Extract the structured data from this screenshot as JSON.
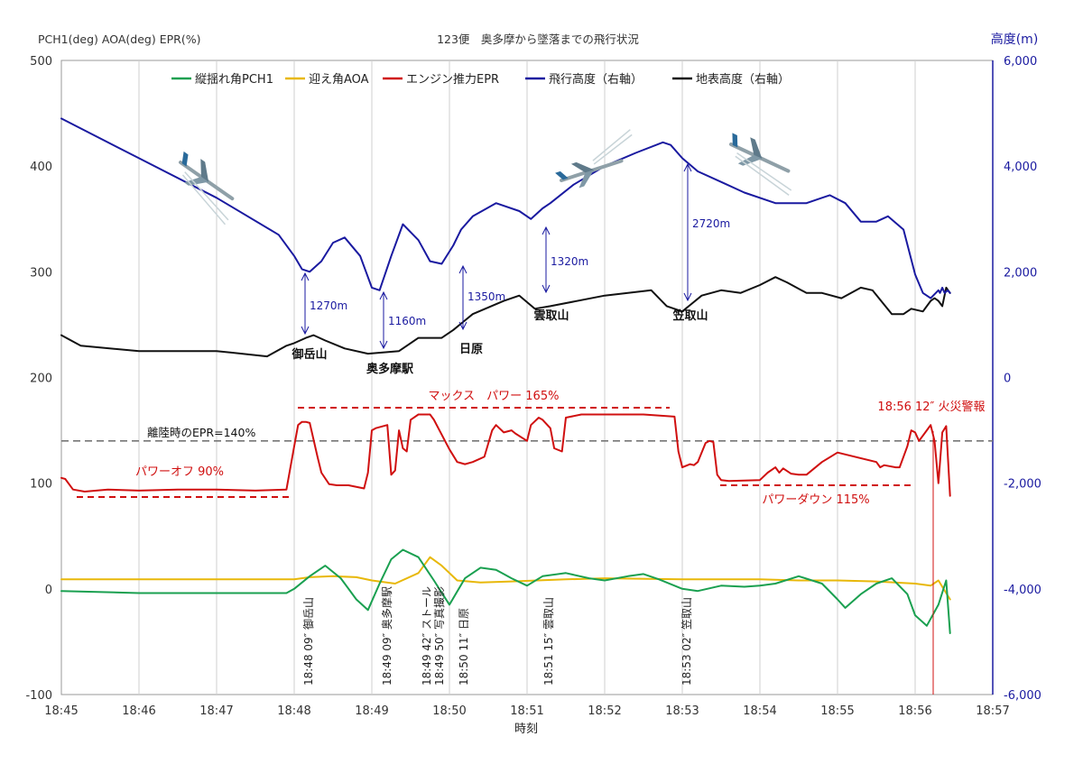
{
  "header": {
    "left_axis_label": "PCH1(deg)  AOA(deg)  EPR(%)",
    "right_axis_label": "高度(m)"
  },
  "chart_data": {
    "type": "line",
    "title": "123便　奥多摩から墜落までの飛行状況",
    "xlabel": "時刻",
    "x_range": [
      "18:45",
      "18:57"
    ],
    "x_ticks": [
      "18:45",
      "18:46",
      "18:47",
      "18:48",
      "18:49",
      "18:50",
      "18:51",
      "18:52",
      "18:53",
      "18:54",
      "18:55",
      "18:56",
      "18:57"
    ],
    "y_left_range": [
      -100,
      500
    ],
    "y_left_ticks": [
      -100,
      0,
      100,
      200,
      300,
      400,
      500
    ],
    "y_right_range": [
      -6000,
      6000
    ],
    "y_right_ticks": [
      "-6,000",
      "-4,000",
      "-2,000",
      "0",
      "2,000",
      "4,000",
      "6,000"
    ],
    "grid": "vertical",
    "legend_position": "top",
    "series": [
      {
        "name": "縦揺れ角PCH1",
        "axis": "left",
        "color": "#1aa050",
        "x": [
          0,
          1,
          2,
          2.5,
          2.9,
          3.0,
          3.2,
          3.4,
          3.6,
          3.8,
          3.95,
          4.1,
          4.25,
          4.4,
          4.6,
          4.8,
          5.0,
          5.2,
          5.4,
          5.6,
          5.8,
          6.0,
          6.2,
          6.5,
          6.8,
          7.0,
          7.3,
          7.5,
          7.7,
          8.0,
          8.2,
          8.5,
          8.8,
          9.0,
          9.2,
          9.5,
          9.8,
          10.0,
          10.1,
          10.3,
          10.5,
          10.7,
          10.9,
          11.0,
          11.15,
          11.3,
          11.4,
          11.45
        ],
        "y": [
          -2,
          -4,
          -4,
          -4,
          -4,
          0,
          12,
          22,
          10,
          -10,
          -20,
          5,
          28,
          37,
          30,
          8,
          -15,
          10,
          20,
          18,
          10,
          3,
          12,
          15,
          10,
          8,
          12,
          14,
          9,
          0,
          -2,
          3,
          2,
          3,
          5,
          12,
          5,
          -10,
          -18,
          -5,
          5,
          10,
          -5,
          -25,
          -35,
          -15,
          8,
          -42
        ]
      },
      {
        "name": "迎え角AOA",
        "axis": "left",
        "color": "#e8b80a",
        "x": [
          0,
          1,
          2,
          3,
          3.2,
          3.5,
          3.8,
          4.0,
          4.3,
          4.6,
          4.75,
          4.9,
          5.1,
          5.4,
          5.8,
          6.5,
          7,
          8,
          9,
          9.5,
          10,
          10.5,
          11,
          11.2,
          11.3,
          11.45
        ],
        "y": [
          9,
          9,
          9,
          9,
          11,
          12,
          11,
          8,
          5,
          15,
          30,
          22,
          8,
          6,
          7,
          9,
          10,
          9,
          9,
          8,
          8,
          7,
          5,
          3,
          8,
          -10
        ]
      },
      {
        "name": "エンジン推力EPR",
        "axis": "left",
        "color": "#d01010",
        "x": [
          0,
          0.05,
          0.15,
          0.3,
          0.6,
          1,
          1.5,
          2,
          2.5,
          2.9,
          3.0,
          3.05,
          3.1,
          3.15,
          3.2,
          3.3,
          3.35,
          3.45,
          3.55,
          3.7,
          3.9,
          3.95,
          4.0,
          4.05,
          4.2,
          4.25,
          4.3,
          4.35,
          4.4,
          4.45,
          4.5,
          4.6,
          4.65,
          4.75,
          4.8,
          5.0,
          5.05,
          5.1,
          5.2,
          5.3,
          5.45,
          5.55,
          5.6,
          5.7,
          5.8,
          5.85,
          6.0,
          6.05,
          6.15,
          6.2,
          6.3,
          6.35,
          6.45,
          6.5,
          6.7,
          7.5,
          7.9,
          7.95,
          8.0,
          8.1,
          8.15,
          8.2,
          8.3,
          8.35,
          8.4,
          8.45,
          8.5,
          8.6,
          9.0,
          9.1,
          9.2,
          9.25,
          9.3,
          9.4,
          9.5,
          9.6,
          9.8,
          10.0,
          10.5,
          10.55,
          10.6,
          10.75,
          10.8,
          10.9,
          10.95,
          11.0,
          11.05,
          11.15,
          11.2,
          11.25,
          11.3,
          11.35,
          11.4,
          11.45
        ],
        "y": [
          105,
          104,
          94,
          92,
          94,
          93,
          94,
          94,
          93,
          94,
          135,
          155,
          158,
          158,
          157,
          125,
          110,
          99,
          98,
          98,
          95,
          110,
          150,
          152,
          155,
          108,
          112,
          150,
          133,
          130,
          160,
          165,
          165,
          165,
          160,
          132,
          126,
          120,
          118,
          120,
          125,
          150,
          155,
          148,
          150,
          147,
          140,
          155,
          162,
          160,
          152,
          133,
          130,
          162,
          165,
          165,
          163,
          130,
          115,
          118,
          117,
          120,
          138,
          140,
          139,
          108,
          103,
          102,
          103,
          110,
          115,
          110,
          114,
          109,
          108,
          108,
          120,
          129,
          120,
          115,
          117,
          115,
          115,
          135,
          150,
          148,
          140,
          150,
          155,
          140,
          100,
          148,
          154,
          88
        ]
      },
      {
        "name": "飛行高度（右軸）",
        "axis": "right",
        "color": "#1a1aa0",
        "x": [
          0,
          1,
          2,
          2.8,
          3.0,
          3.1,
          3.2,
          3.35,
          3.5,
          3.65,
          3.85,
          4.0,
          4.1,
          4.25,
          4.4,
          4.6,
          4.75,
          4.9,
          5.05,
          5.15,
          5.3,
          5.6,
          5.9,
          6.05,
          6.2,
          6.3,
          6.6,
          7.0,
          7.4,
          7.75,
          7.85,
          8.0,
          8.2,
          8.5,
          8.8,
          9.2,
          9.6,
          9.8,
          9.9,
          10.1,
          10.3,
          10.5,
          10.65,
          10.85,
          11.0,
          11.1,
          11.2,
          11.3,
          11.32,
          11.35,
          11.38,
          11.42,
          11.45
        ],
        "y": [
          4900,
          4150,
          3400,
          2700,
          2300,
          2050,
          2000,
          2200,
          2550,
          2650,
          2300,
          1700,
          1650,
          2300,
          2900,
          2600,
          2200,
          2150,
          2500,
          2800,
          3050,
          3300,
          3150,
          3000,
          3200,
          3300,
          3650,
          4000,
          4250,
          4450,
          4400,
          4150,
          3900,
          3700,
          3500,
          3300,
          3300,
          3400,
          3450,
          3300,
          2950,
          2950,
          3050,
          2800,
          1950,
          1600,
          1500,
          1650,
          1600,
          1700,
          1600,
          1650,
          1600
        ]
      },
      {
        "name": "地表高度（右軸）",
        "axis": "right",
        "color": "#111111",
        "x": [
          0,
          0.25,
          1,
          2,
          2.65,
          2.9,
          3.0,
          3.15,
          3.25,
          3.4,
          3.65,
          3.95,
          4.35,
          4.6,
          4.9,
          5.05,
          5.3,
          5.7,
          5.9,
          6.1,
          6.3,
          7.0,
          7.6,
          7.8,
          8.0,
          8.25,
          8.5,
          8.75,
          9.0,
          9.2,
          9.35,
          9.6,
          9.8,
          10.05,
          10.3,
          10.45,
          10.7,
          10.85,
          10.95,
          11.1,
          11.2,
          11.25,
          11.3,
          11.35,
          11.4,
          11.45
        ],
        "y": [
          800,
          600,
          500,
          500,
          400,
          600,
          650,
          750,
          800,
          700,
          550,
          450,
          500,
          750,
          750,
          900,
          1200,
          1450,
          1550,
          1300,
          1350,
          1550,
          1650,
          1350,
          1250,
          1550,
          1650,
          1600,
          1750,
          1900,
          1800,
          1600,
          1600,
          1500,
          1700,
          1650,
          1200,
          1200,
          1300,
          1250,
          1450,
          1500,
          1450,
          1350,
          1700,
          1600
        ]
      }
    ],
    "reference_lines": [
      {
        "label": "離陸時のEPR=140%",
        "y": 140,
        "axis": "left",
        "color": "#777777",
        "style": "dashed"
      }
    ],
    "annotations": {
      "power_off": "パワーオフ 90%",
      "max_power": "マックス　パワー 165%",
      "power_down": "パワーダウン 115%",
      "fire_alarm": "18:56 12″ 火災警報",
      "altitude_diffs": [
        "1270m",
        "1160m",
        "1350m",
        "1320m",
        "2720m"
      ],
      "places": [
        "御岳山",
        "奥多摩駅",
        "日原",
        "雲取山",
        "笠取山"
      ],
      "event_labels": [
        "18:48 09″ 御岳山",
        "18:49 09″ 奥多摩駅",
        "18:49 42″ ストール",
        "18:49 50″ 写真撮影",
        "18:50 11″ 日原",
        "18:51 15″ 雲取山",
        "18:53 02″ 笠取山"
      ]
    }
  }
}
